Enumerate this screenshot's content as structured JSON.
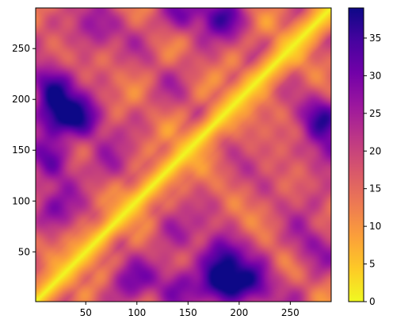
{
  "chart_data": {
    "type": "heatmap",
    "title": "",
    "xlabel": "",
    "ylabel": "",
    "xlim": [
      1,
      290
    ],
    "ylim": [
      1,
      290
    ],
    "x_ticks": [
      50,
      100,
      150,
      200,
      250
    ],
    "y_ticks": [
      50,
      100,
      150,
      200,
      250
    ],
    "colormap": "plasma_r",
    "colorbar": {
      "min": 0,
      "max": 39,
      "ticks": [
        0,
        5,
        10,
        15,
        20,
        25,
        30,
        35
      ]
    },
    "diagonal_value": 0,
    "dark_regions": [
      {
        "x": 18,
        "y": 182,
        "value": 34
      },
      {
        "x": 45,
        "y": 183,
        "value": 33
      },
      {
        "x": 18,
        "y": 212,
        "value": 32
      },
      {
        "x": 18,
        "y": 143,
        "value": 30
      },
      {
        "x": 182,
        "y": 18,
        "value": 36
      },
      {
        "x": 212,
        "y": 18,
        "value": 33
      },
      {
        "x": 183,
        "y": 45,
        "value": 32
      },
      {
        "x": 143,
        "y": 18,
        "value": 30
      },
      {
        "x": 283,
        "y": 180,
        "value": 31
      },
      {
        "x": 180,
        "y": 283,
        "value": 31
      },
      {
        "x": 283,
        "y": 145,
        "value": 28
      },
      {
        "x": 145,
        "y": 283,
        "value": 28
      },
      {
        "x": 55,
        "y": 268,
        "value": 27
      },
      {
        "x": 268,
        "y": 55,
        "value": 27
      },
      {
        "x": 90,
        "y": 20,
        "value": 27
      },
      {
        "x": 20,
        "y": 90,
        "value": 27
      },
      {
        "x": 70,
        "y": 130,
        "value": 24
      },
      {
        "x": 130,
        "y": 70,
        "value": 24
      }
    ]
  },
  "colors": {
    "cmap_stops": [
      "#f0f921",
      "#fdca26",
      "#fb9f3a",
      "#ed7953",
      "#d8576b",
      "#bd3786",
      "#9c179e",
      "#7201a8",
      "#46039f",
      "#0d0887"
    ]
  }
}
